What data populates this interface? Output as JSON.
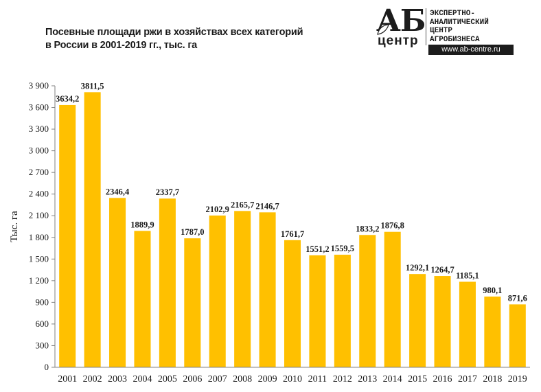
{
  "title_lines": [
    "Посевные площади ржи в хозяйствах всех категорий",
    "в России в 2001-2019 гг., тыс. га"
  ],
  "logo": {
    "mark": "АБ",
    "sub": "центр",
    "lines": [
      "ЭКСПЕРТНО-",
      "АНАЛИТИЧЕСКИЙ",
      "ЦЕНТР",
      "АГРОБИЗНЕСА"
    ],
    "url": "www.ab-centre.ru"
  },
  "colors": {
    "bar": "#FFC000",
    "axis": "#808080",
    "text": "#1a1a1a"
  },
  "chart_data": {
    "type": "bar",
    "title": "Посевные площади ржи в хозяйствах всех категорий в России в 2001-2019 гг., тыс. га",
    "xlabel": "",
    "ylabel": "Тыс. га",
    "ylim": [
      0,
      3900
    ],
    "yticks": [
      0,
      300,
      600,
      900,
      1200,
      1500,
      1800,
      2100,
      2400,
      2700,
      3000,
      3300,
      3600,
      3900
    ],
    "ytick_labels": [
      "0",
      "300",
      "600",
      "900",
      "1 200",
      "1 500",
      "1 800",
      "2 100",
      "2 400",
      "2 700",
      "3 000",
      "3 300",
      "3 600",
      "3 900"
    ],
    "grid": false,
    "legend": "none",
    "categories": [
      "2001",
      "2002",
      "2003",
      "2004",
      "2005",
      "2006",
      "2007",
      "2008",
      "2009",
      "2010",
      "2011",
      "2012",
      "2013",
      "2014",
      "2015",
      "2016",
      "2017",
      "2018",
      "2019"
    ],
    "values": [
      3634.2,
      3811.5,
      2346.4,
      1889.9,
      2337.7,
      1787.0,
      2102.9,
      2165.7,
      2146.7,
      1761.7,
      1551.2,
      1559.5,
      1833.2,
      1876.8,
      1292.1,
      1264.7,
      1185.1,
      980.1,
      871.6
    ],
    "value_labels": [
      "3634,2",
      "3811,5",
      "2346,4",
      "1889,9",
      "2337,7",
      "1787,0",
      "2102,9",
      "2165,7",
      "2146,7",
      "1761,7",
      "1551,2",
      "1559,5",
      "1833,2",
      "1876,8",
      "1292,1",
      "1264,7",
      "1185,1",
      "980,1",
      "871,6"
    ]
  }
}
